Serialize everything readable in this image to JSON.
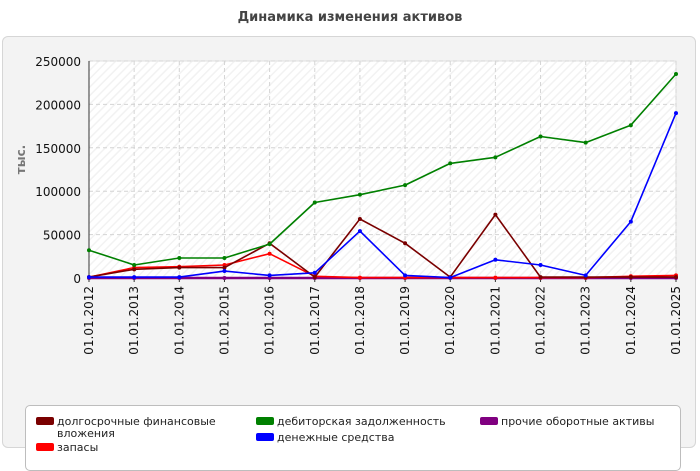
{
  "chart_data": {
    "type": "line",
    "title": "Динамика изменения активов",
    "ylabel": "тыс.",
    "xlabel": "",
    "ylim": [
      0,
      250000
    ],
    "yticks": [
      0,
      50000,
      100000,
      150000,
      200000,
      250000
    ],
    "grid": true,
    "legend_position": "bottom",
    "categories": [
      "01.01.2012",
      "01.01.2013",
      "01.01.2014",
      "01.01.2015",
      "01.01.2016",
      "01.01.2017",
      "01.01.2018",
      "01.01.2019",
      "01.01.2020",
      "01.01.2021",
      "01.01.2022",
      "01.01.2023",
      "01.01.2024",
      "01.01.2025"
    ],
    "series": [
      {
        "name": "долгосрочные финансовые вложения",
        "color": "#7a0000",
        "values": [
          1000,
          10000,
          12000,
          12000,
          40000,
          1000,
          68000,
          40000,
          1000,
          73000,
          1000,
          1000,
          1000,
          1000
        ]
      },
      {
        "name": "дебиторская задолженность",
        "color": "#008000",
        "values": [
          32000,
          15000,
          23000,
          23000,
          39000,
          87000,
          96000,
          107000,
          132000,
          139000,
          163000,
          156000,
          176000,
          235000
        ]
      },
      {
        "name": "прочие оборотные активы",
        "color": "#800080",
        "values": [
          0,
          0,
          0,
          0,
          0,
          0,
          0,
          0,
          0,
          0,
          0,
          0,
          0,
          0
        ]
      },
      {
        "name": "запасы",
        "color": "#ff0000",
        "values": [
          1000,
          12000,
          13000,
          15000,
          28000,
          2000,
          500,
          500,
          500,
          500,
          500,
          500,
          2000,
          3000
        ]
      },
      {
        "name": "денежные средства",
        "color": "#0000ff",
        "values": [
          1000,
          1000,
          1000,
          8000,
          3000,
          6000,
          54000,
          3000,
          500,
          21000,
          15000,
          3000,
          65000,
          190000
        ]
      }
    ]
  }
}
